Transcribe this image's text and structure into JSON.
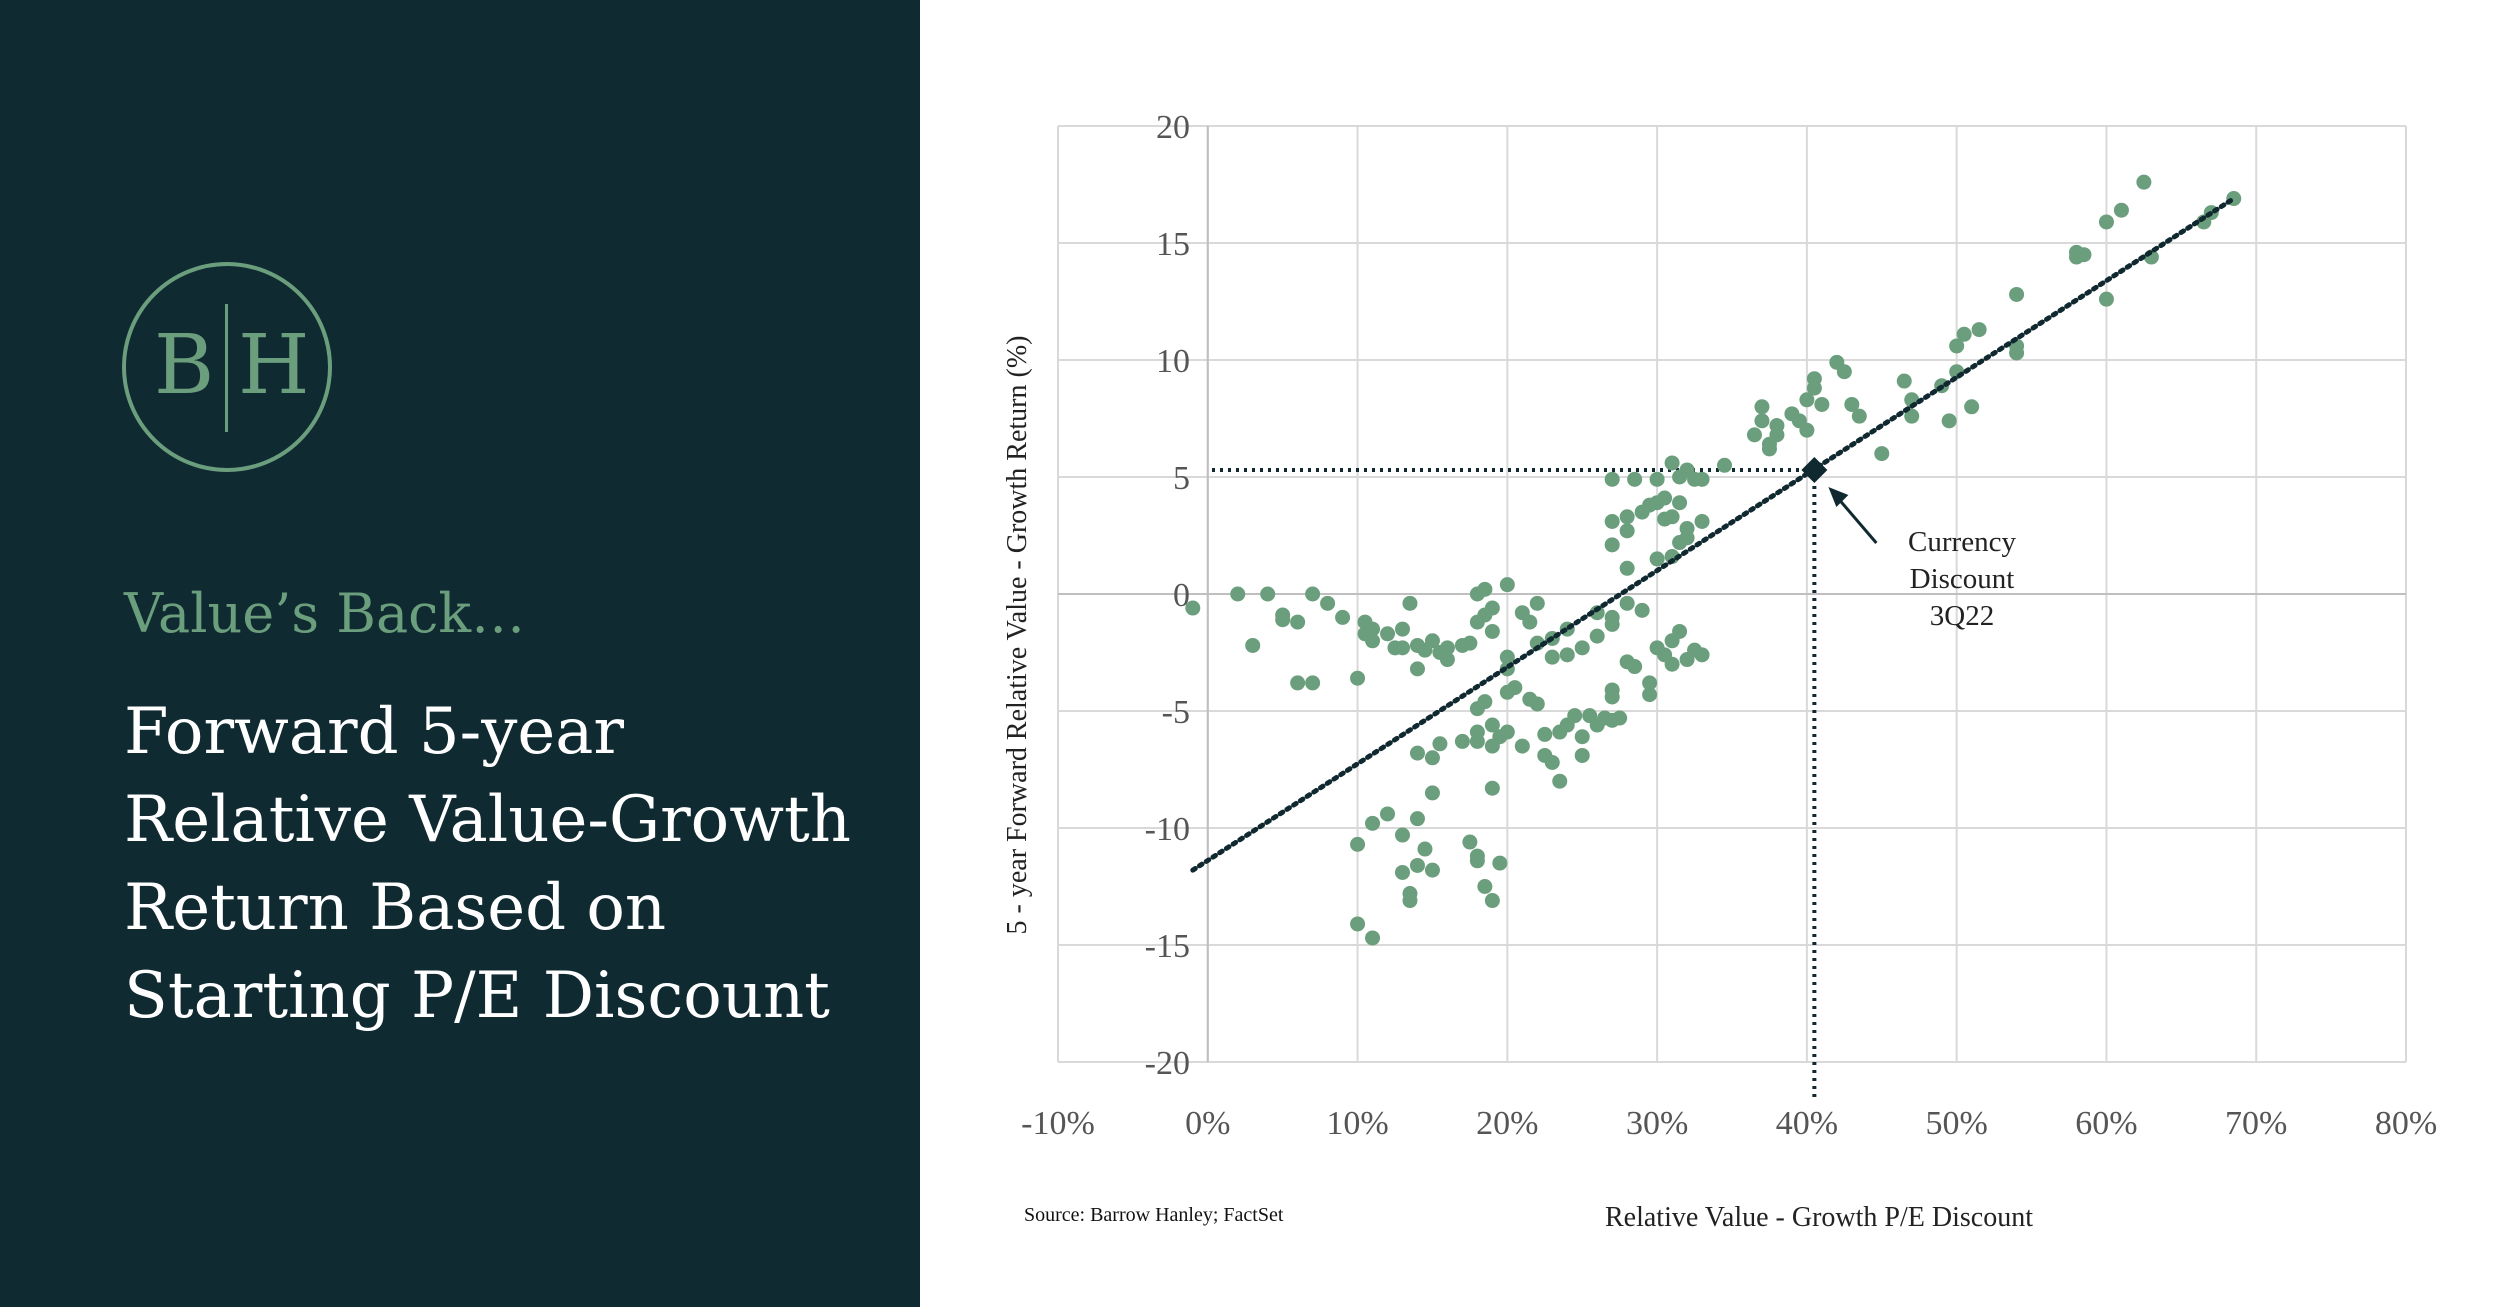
{
  "brand": {
    "logo_left": "B",
    "logo_right": "H",
    "accent_color": "#6b9e7c",
    "panel_color": "#0f2a31"
  },
  "slide": {
    "kicker": "Value’s Back…",
    "headline_lines": [
      "Forward 5-year",
      "Relative Value-Growth",
      "Return Based on",
      "Starting P/E Discount"
    ],
    "source": "Source: Barrow Hanley; FactSet"
  },
  "chart_data": {
    "type": "scatter",
    "xlabel": "Relative Value - Growth P/E Discount",
    "ylabel": "5 - year Forward Relative Value - Growth Return (%)",
    "xlim": [
      -0.1,
      0.8
    ],
    "ylim": [
      -20,
      20
    ],
    "x_ticks": [
      -0.1,
      0,
      0.1,
      0.2,
      0.3,
      0.4,
      0.5,
      0.6,
      0.7,
      0.8
    ],
    "x_tick_labels": [
      "-10%",
      "0%",
      "10%",
      "20%",
      "30%",
      "40%",
      "50%",
      "60%",
      "70%",
      "80%"
    ],
    "y_ticks": [
      20,
      15,
      10,
      5,
      0,
      -5,
      -10,
      -15,
      -20
    ],
    "y_tick_labels": [
      "20",
      "15",
      "10",
      "5",
      "0",
      "-5",
      "-10",
      "-15",
      "-20"
    ],
    "grid": true,
    "point_color": "#6b9e7c",
    "trendline": {
      "x": [
        -0.01,
        0.685
      ],
      "y": [
        -11.8,
        16.9
      ],
      "style": "dotted",
      "color": "#10282f"
    },
    "highlight": {
      "x": 0.405,
      "y": 5.3,
      "label_lines": [
        "Currency",
        "Discount",
        "3Q22"
      ]
    },
    "points": [
      [
        -0.01,
        -0.6
      ],
      [
        0.02,
        0.0
      ],
      [
        0.03,
        -2.2
      ],
      [
        0.04,
        0.0
      ],
      [
        0.05,
        -1.1
      ],
      [
        0.05,
        -0.9
      ],
      [
        0.06,
        -3.8
      ],
      [
        0.06,
        -1.2
      ],
      [
        0.07,
        0.0
      ],
      [
        0.07,
        -3.8
      ],
      [
        0.08,
        -0.4
      ],
      [
        0.09,
        -1.0
      ],
      [
        0.1,
        -3.6
      ],
      [
        0.105,
        -1.2
      ],
      [
        0.105,
        -1.7
      ],
      [
        0.11,
        -1.5
      ],
      [
        0.11,
        -2.0
      ],
      [
        0.12,
        -1.7
      ],
      [
        0.125,
        -2.3
      ],
      [
        0.13,
        -1.5
      ],
      [
        0.13,
        -2.3
      ],
      [
        0.135,
        -0.4
      ],
      [
        0.14,
        -2.2
      ],
      [
        0.14,
        -3.2
      ],
      [
        0.145,
        -2.4
      ],
      [
        0.15,
        -2.0
      ],
      [
        0.155,
        -2.5
      ],
      [
        0.16,
        -2.3
      ],
      [
        0.16,
        -2.8
      ],
      [
        0.17,
        -2.2
      ],
      [
        0.175,
        -2.1
      ],
      [
        0.18,
        0.0
      ],
      [
        0.18,
        -1.2
      ],
      [
        0.185,
        0.2
      ],
      [
        0.185,
        -0.9
      ],
      [
        0.19,
        -0.6
      ],
      [
        0.19,
        -1.6
      ],
      [
        0.2,
        0.4
      ],
      [
        0.2,
        -2.7
      ],
      [
        0.2,
        -3.2
      ],
      [
        0.21,
        -0.8
      ],
      [
        0.215,
        -1.2
      ],
      [
        0.22,
        -0.4
      ],
      [
        0.22,
        -2.1
      ],
      [
        0.23,
        -1.9
      ],
      [
        0.23,
        -2.7
      ],
      [
        0.24,
        -1.5
      ],
      [
        0.24,
        -2.6
      ],
      [
        0.25,
        -2.3
      ],
      [
        0.26,
        -1.8
      ],
      [
        0.26,
        -0.8
      ],
      [
        0.27,
        -1.3
      ],
      [
        0.27,
        -1.0
      ],
      [
        0.28,
        -0.4
      ],
      [
        0.28,
        -2.9
      ],
      [
        0.29,
        -0.7
      ],
      [
        0.1,
        -10.7
      ],
      [
        0.1,
        -14.1
      ],
      [
        0.11,
        -9.8
      ],
      [
        0.11,
        -14.7
      ],
      [
        0.12,
        -9.4
      ],
      [
        0.13,
        -10.3
      ],
      [
        0.13,
        -11.9
      ],
      [
        0.135,
        -12.8
      ],
      [
        0.135,
        -13.1
      ],
      [
        0.14,
        -11.6
      ],
      [
        0.14,
        -9.6
      ],
      [
        0.145,
        -10.9
      ],
      [
        0.15,
        -8.5
      ],
      [
        0.15,
        -11.8
      ],
      [
        0.14,
        -6.8
      ],
      [
        0.15,
        -7.0
      ],
      [
        0.155,
        -6.4
      ],
      [
        0.17,
        -6.3
      ],
      [
        0.175,
        -10.6
      ],
      [
        0.18,
        -11.2
      ],
      [
        0.18,
        -11.4
      ],
      [
        0.185,
        -12.5
      ],
      [
        0.19,
        -13.1
      ],
      [
        0.19,
        -8.3
      ],
      [
        0.195,
        -11.5
      ],
      [
        0.18,
        -4.9
      ],
      [
        0.18,
        -5.9
      ],
      [
        0.18,
        -6.3
      ],
      [
        0.185,
        -4.6
      ],
      [
        0.19,
        -5.6
      ],
      [
        0.19,
        -6.5
      ],
      [
        0.195,
        -6.1
      ],
      [
        0.2,
        -4.2
      ],
      [
        0.2,
        -5.9
      ],
      [
        0.205,
        -4.0
      ],
      [
        0.21,
        -6.5
      ],
      [
        0.215,
        -4.5
      ],
      [
        0.22,
        -4.7
      ],
      [
        0.225,
        -6.0
      ],
      [
        0.225,
        -6.9
      ],
      [
        0.23,
        -7.2
      ],
      [
        0.235,
        -5.9
      ],
      [
        0.235,
        -8.0
      ],
      [
        0.24,
        -5.6
      ],
      [
        0.245,
        -5.2
      ],
      [
        0.25,
        -6.1
      ],
      [
        0.25,
        -6.9
      ],
      [
        0.255,
        -5.2
      ],
      [
        0.26,
        -5.6
      ],
      [
        0.265,
        -5.3
      ],
      [
        0.27,
        -4.1
      ],
      [
        0.27,
        -4.4
      ],
      [
        0.27,
        -5.4
      ],
      [
        0.275,
        -5.3
      ],
      [
        0.285,
        -3.1
      ],
      [
        0.295,
        -3.8
      ],
      [
        0.295,
        -4.3
      ],
      [
        0.27,
        2.1
      ],
      [
        0.27,
        3.1
      ],
      [
        0.27,
        4.9
      ],
      [
        0.28,
        2.7
      ],
      [
        0.28,
        3.3
      ],
      [
        0.285,
        4.9
      ],
      [
        0.29,
        3.5
      ],
      [
        0.295,
        3.8
      ],
      [
        0.3,
        3.9
      ],
      [
        0.3,
        4.9
      ],
      [
        0.305,
        3.2
      ],
      [
        0.305,
        4.1
      ],
      [
        0.31,
        5.6
      ],
      [
        0.31,
        3.3
      ],
      [
        0.315,
        5.0
      ],
      [
        0.315,
        3.9
      ],
      [
        0.32,
        2.8
      ],
      [
        0.32,
        5.3
      ],
      [
        0.325,
        4.9
      ],
      [
        0.33,
        3.1
      ],
      [
        0.33,
        4.9
      ],
      [
        0.28,
        1.1
      ],
      [
        0.3,
        1.5
      ],
      [
        0.31,
        1.6
      ],
      [
        0.315,
        2.2
      ],
      [
        0.32,
        2.4
      ],
      [
        0.3,
        -2.3
      ],
      [
        0.305,
        -2.6
      ],
      [
        0.31,
        -2.0
      ],
      [
        0.31,
        -3.0
      ],
      [
        0.315,
        -1.6
      ],
      [
        0.32,
        -2.8
      ],
      [
        0.325,
        -2.4
      ],
      [
        0.33,
        -2.6
      ],
      [
        0.345,
        5.5
      ],
      [
        0.365,
        6.8
      ],
      [
        0.37,
        7.4
      ],
      [
        0.37,
        8.0
      ],
      [
        0.375,
        6.2
      ],
      [
        0.375,
        6.4
      ],
      [
        0.38,
        6.8
      ],
      [
        0.38,
        7.2
      ],
      [
        0.39,
        7.7
      ],
      [
        0.395,
        7.4
      ],
      [
        0.4,
        8.3
      ],
      [
        0.4,
        7.0
      ],
      [
        0.405,
        8.8
      ],
      [
        0.405,
        9.2
      ],
      [
        0.41,
        8.1
      ],
      [
        0.42,
        9.9
      ],
      [
        0.425,
        9.5
      ],
      [
        0.43,
        8.1
      ],
      [
        0.435,
        7.6
      ],
      [
        0.45,
        6.0
      ],
      [
        0.465,
        9.1
      ],
      [
        0.47,
        8.3
      ],
      [
        0.47,
        7.6
      ],
      [
        0.49,
        8.9
      ],
      [
        0.495,
        7.4
      ],
      [
        0.5,
        9.5
      ],
      [
        0.5,
        10.6
      ],
      [
        0.505,
        11.1
      ],
      [
        0.51,
        8.0
      ],
      [
        0.515,
        11.3
      ],
      [
        0.54,
        10.3
      ],
      [
        0.54,
        12.8
      ],
      [
        0.54,
        10.6
      ],
      [
        0.58,
        14.4
      ],
      [
        0.58,
        14.6
      ],
      [
        0.585,
        14.5
      ],
      [
        0.6,
        12.6
      ],
      [
        0.6,
        15.9
      ],
      [
        0.61,
        16.4
      ],
      [
        0.625,
        17.6
      ],
      [
        0.63,
        14.4
      ],
      [
        0.665,
        15.9
      ],
      [
        0.67,
        16.3
      ],
      [
        0.685,
        16.9
      ]
    ]
  }
}
